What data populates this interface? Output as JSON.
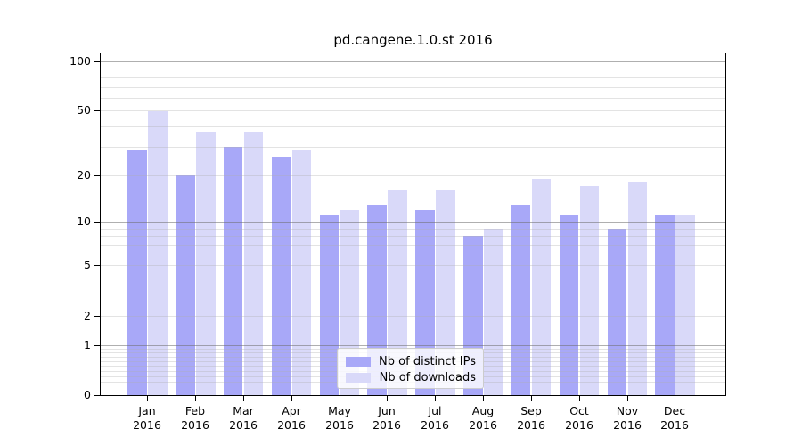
{
  "chart_data": {
    "type": "bar",
    "title": "pd.cangene.1.0.st 2016",
    "categories": [
      "Jan",
      "Feb",
      "Mar",
      "Apr",
      "May",
      "Jun",
      "Jul",
      "Aug",
      "Sep",
      "Oct",
      "Nov",
      "Dec"
    ],
    "year_label": "2016",
    "series": [
      {
        "name": "Nb of distinct IPs",
        "color": "#a8a8f8",
        "values": [
          29,
          20,
          30,
          26,
          11,
          13,
          12,
          8,
          13,
          11,
          9,
          11
        ]
      },
      {
        "name": "Nb of downloads",
        "color": "#d9d9f9",
        "values": [
          50,
          37,
          37,
          29,
          12,
          16,
          16,
          9,
          19,
          17,
          18,
          11
        ]
      }
    ],
    "xlabel": "",
    "ylabel": "",
    "y_axis": {
      "scale": "log1p",
      "tick_values": [
        100,
        50,
        20,
        10,
        5,
        2,
        1,
        0
      ],
      "tick_labels": [
        "100",
        "50",
        "20",
        "10",
        "5",
        "2",
        "1",
        "0"
      ],
      "ylim": [
        0,
        115
      ],
      "major_gridlines": [
        1,
        10,
        100
      ],
      "minor_gridlines": [
        0.2,
        0.3,
        0.4,
        0.5,
        0.6,
        0.7,
        0.8,
        0.9,
        2,
        3,
        4,
        5,
        6,
        7,
        8,
        9,
        20,
        30,
        40,
        50,
        60,
        70,
        80,
        90
      ],
      "grid_on": true
    },
    "legend": {
      "position": "lower center",
      "entries": [
        "Nb of distinct IPs",
        "Nb of downloads"
      ]
    },
    "colors": {
      "axis": "#000000",
      "grid_major": "rgba(110,110,110,0.55)",
      "grid_minor": "rgba(175,175,175,0.35)",
      "legend_border": "#cccccc",
      "legend_background": "rgba(255,255,255,0.8)"
    }
  }
}
